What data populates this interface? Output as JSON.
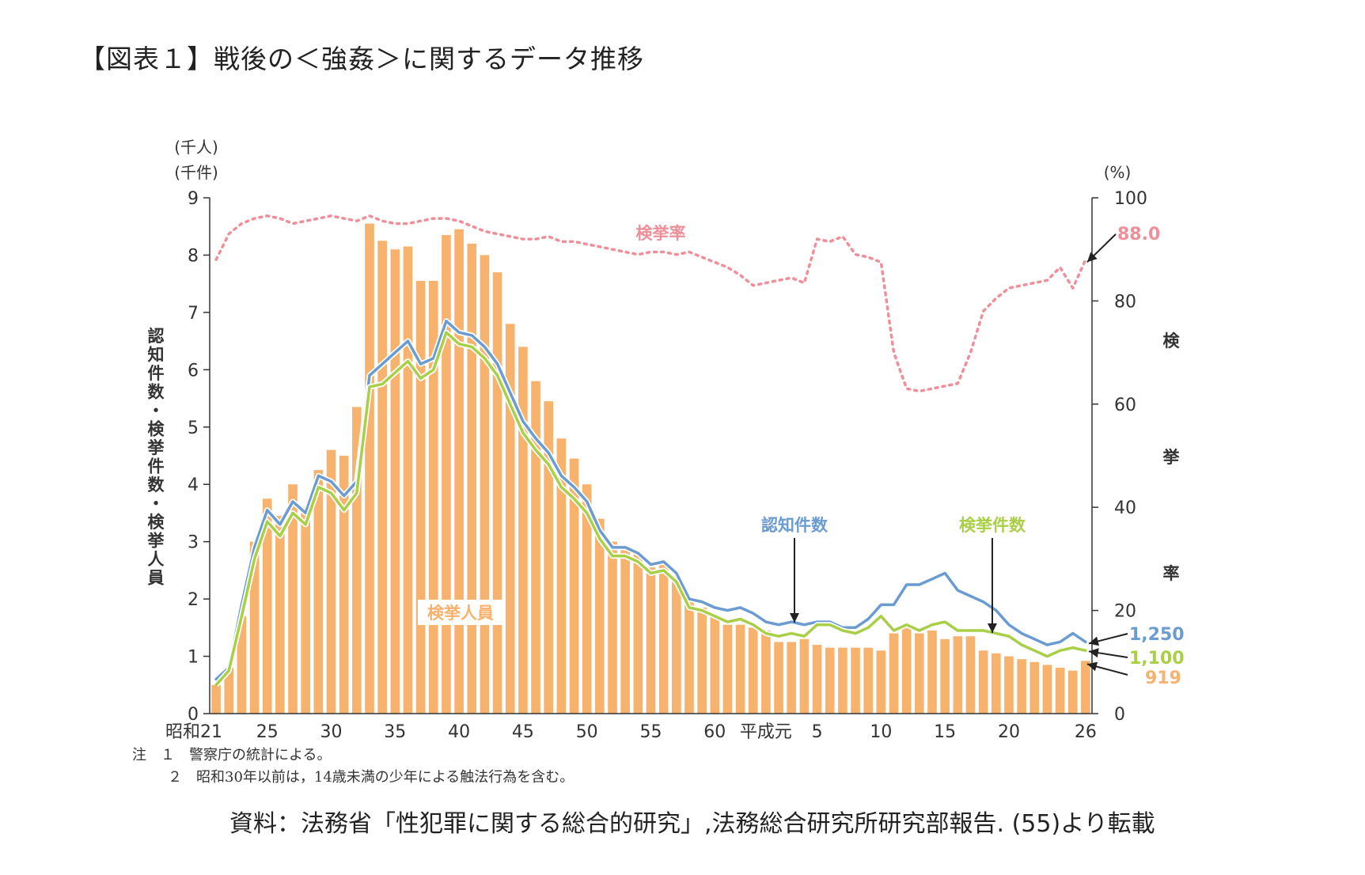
{
  "title": "【図表１】戦後の＜強姦＞に関するデータ推移",
  "source": "資料：法務省「性犯罪に関する総合的研究」,法務総合研究所研究部報告. (55)より転載",
  "notes": [
    "注　１　警察庁の統計による。",
    "２　昭和30年以前は，14歳未満の少年による触法行為を含む。"
  ],
  "colors": {
    "recognized": "#6a9bd1",
    "cleared": "#a9cf47",
    "persons": "#f7b26e",
    "rate": "#ee8f99",
    "axis": "#333333"
  },
  "chart_data": {
    "type": "bar+line",
    "left_axis": {
      "units": [
        "(千人)",
        "(千件)"
      ],
      "label": "認知件数・検挙件数・検挙人員",
      "ticks": [
        0,
        1,
        2,
        3,
        4,
        5,
        6,
        7,
        8,
        9
      ],
      "range": [
        0,
        9
      ]
    },
    "right_axis": {
      "unit": "(%)",
      "label": "検挙率",
      "ticks": [
        0,
        20,
        40,
        60,
        80,
        100
      ],
      "range": [
        0,
        100
      ]
    },
    "x_tick_labels": [
      {
        "index": 0,
        "label": "昭和21"
      },
      {
        "index": 4,
        "label": "25"
      },
      {
        "index": 9,
        "label": "30"
      },
      {
        "index": 14,
        "label": "35"
      },
      {
        "index": 19,
        "label": "40"
      },
      {
        "index": 24,
        "label": "45"
      },
      {
        "index": 29,
        "label": "50"
      },
      {
        "index": 34,
        "label": "55"
      },
      {
        "index": 39,
        "label": "60"
      },
      {
        "index": 43,
        "label": "平成元"
      },
      {
        "index": 47,
        "label": "5"
      },
      {
        "index": 52,
        "label": "10"
      },
      {
        "index": 57,
        "label": "15"
      },
      {
        "index": 62,
        "label": "20"
      },
      {
        "index": 68,
        "label": "26"
      }
    ],
    "x_years": [
      "昭和21",
      "昭和22",
      "昭和23",
      "昭和24",
      "昭和25",
      "昭和26",
      "昭和27",
      "昭和28",
      "昭和29",
      "昭和30",
      "昭和31",
      "昭和32",
      "昭和33",
      "昭和34",
      "昭和35",
      "昭和36",
      "昭和37",
      "昭和38",
      "昭和39",
      "昭和40",
      "昭和41",
      "昭和42",
      "昭和43",
      "昭和44",
      "昭和45",
      "昭和46",
      "昭和47",
      "昭和48",
      "昭和49",
      "昭和50",
      "昭和51",
      "昭和52",
      "昭和53",
      "昭和54",
      "昭和55",
      "昭和56",
      "昭和57",
      "昭和58",
      "昭和59",
      "昭和60",
      "昭和61",
      "昭和62",
      "昭和63",
      "平成元",
      "平成2",
      "平成3",
      "平成4",
      "平成5",
      "平成6",
      "平成7",
      "平成8",
      "平成9",
      "平成10",
      "平成11",
      "平成12",
      "平成13",
      "平成14",
      "平成15",
      "平成16",
      "平成17",
      "平成18",
      "平成19",
      "平成20",
      "平成21",
      "平成22",
      "平成23",
      "平成24",
      "平成25",
      "平成26"
    ],
    "series": [
      {
        "name": "検挙人員",
        "kind": "bar",
        "unit": "千人",
        "values": [
          0.5,
          0.8,
          1.7,
          3.0,
          3.75,
          3.45,
          4.0,
          3.6,
          4.25,
          4.6,
          4.5,
          5.35,
          8.55,
          8.25,
          8.1,
          8.15,
          7.55,
          7.55,
          8.35,
          8.45,
          8.2,
          8.0,
          7.7,
          6.8,
          6.4,
          5.8,
          5.45,
          4.8,
          4.45,
          4.0,
          3.4,
          3.0,
          2.85,
          2.8,
          2.55,
          2.6,
          2.4,
          1.95,
          1.85,
          1.7,
          1.55,
          1.55,
          1.5,
          1.45,
          1.25,
          1.25,
          1.3,
          1.2,
          1.15,
          1.15,
          1.15,
          1.15,
          1.1,
          1.4,
          1.5,
          1.4,
          1.45,
          1.3,
          1.35,
          1.35,
          1.1,
          1.05,
          1.0,
          0.95,
          0.9,
          0.85,
          0.8,
          0.75,
          0.92
        ]
      },
      {
        "name": "認知件数",
        "kind": "line",
        "unit": "千件",
        "values": [
          0.6,
          0.8,
          1.9,
          2.9,
          3.55,
          3.3,
          3.7,
          3.5,
          4.15,
          4.05,
          3.8,
          4.05,
          5.9,
          6.1,
          6.3,
          6.5,
          6.1,
          6.2,
          6.85,
          6.65,
          6.6,
          6.4,
          6.1,
          5.6,
          5.1,
          4.8,
          4.55,
          4.15,
          3.95,
          3.7,
          3.2,
          2.9,
          2.9,
          2.8,
          2.6,
          2.65,
          2.45,
          2.0,
          1.95,
          1.85,
          1.8,
          1.85,
          1.75,
          1.6,
          1.55,
          1.6,
          1.55,
          1.6,
          1.6,
          1.5,
          1.5,
          1.65,
          1.9,
          1.9,
          2.25,
          2.25,
          2.35,
          2.45,
          2.15,
          2.05,
          1.95,
          1.8,
          1.55,
          1.4,
          1.3,
          1.2,
          1.25,
          1.4,
          1.25
        ]
      },
      {
        "name": "検挙件数",
        "kind": "line",
        "unit": "千件",
        "values": [
          0.5,
          0.75,
          1.7,
          2.7,
          3.35,
          3.1,
          3.5,
          3.3,
          3.95,
          3.85,
          3.55,
          3.85,
          5.7,
          5.75,
          5.95,
          6.15,
          5.85,
          6.0,
          6.65,
          6.45,
          6.4,
          6.2,
          5.9,
          5.4,
          4.9,
          4.6,
          4.35,
          3.95,
          3.75,
          3.5,
          3.05,
          2.75,
          2.75,
          2.65,
          2.45,
          2.5,
          2.3,
          1.85,
          1.8,
          1.7,
          1.6,
          1.65,
          1.55,
          1.4,
          1.35,
          1.4,
          1.35,
          1.55,
          1.55,
          1.45,
          1.4,
          1.5,
          1.7,
          1.45,
          1.55,
          1.45,
          1.55,
          1.6,
          1.45,
          1.45,
          1.45,
          1.4,
          1.35,
          1.2,
          1.1,
          1.0,
          1.1,
          1.15,
          1.1
        ]
      },
      {
        "name": "検挙率",
        "kind": "line-dotted",
        "unit": "%",
        "axis": "right",
        "values": [
          88.0,
          93.0,
          95.0,
          96.0,
          96.5,
          96.0,
          95.0,
          95.5,
          96.0,
          96.5,
          96.0,
          95.5,
          96.5,
          95.5,
          95.0,
          95.0,
          95.5,
          96.0,
          96.0,
          95.5,
          94.5,
          93.5,
          93.0,
          92.5,
          92.0,
          92.0,
          92.5,
          91.5,
          91.5,
          91.0,
          90.5,
          90.0,
          89.5,
          89.0,
          89.5,
          89.5,
          89.0,
          89.5,
          88.5,
          87.5,
          86.5,
          85.0,
          83.0,
          83.5,
          84.0,
          84.5,
          83.5,
          92.0,
          91.5,
          92.5,
          89.0,
          88.5,
          87.5,
          70.0,
          63.0,
          62.5,
          63.0,
          63.5,
          64.0,
          70.0,
          78.0,
          80.5,
          82.5,
          83.0,
          83.5,
          84.0,
          86.5,
          82.5,
          88.0
        ]
      }
    ],
    "series_labels": [
      {
        "series": "検挙率",
        "text": "検挙率"
      },
      {
        "series": "認知件数",
        "text": "認知件数"
      },
      {
        "series": "検挙件数",
        "text": "検挙件数"
      },
      {
        "series": "検挙人員",
        "text": "検挙人員"
      }
    ],
    "end_labels": [
      {
        "series": "検挙率",
        "text": "88.0"
      },
      {
        "series": "認知件数",
        "text": "1,250"
      },
      {
        "series": "検挙件数",
        "text": "1,100"
      },
      {
        "series": "検挙人員",
        "text": "919"
      }
    ]
  }
}
